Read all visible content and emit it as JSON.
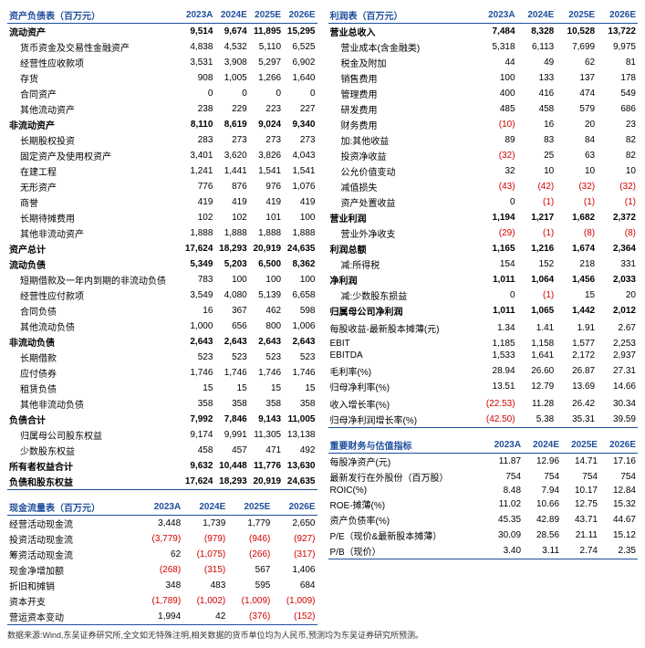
{
  "years": [
    "2023A",
    "2024E",
    "2025E",
    "2026E"
  ],
  "left_top": {
    "title": "资产负债表（百万元）",
    "sections": [
      {
        "label": "流动资产",
        "bold": true,
        "vals": [
          "9,514",
          "9,674",
          "11,895",
          "15,295"
        ]
      },
      {
        "label": "货币资金及交易性金融资产",
        "indent": true,
        "vals": [
          "4,838",
          "4,532",
          "5,110",
          "6,525"
        ]
      },
      {
        "label": "经营性应收款项",
        "indent": true,
        "vals": [
          "3,531",
          "3,908",
          "5,297",
          "6,902"
        ]
      },
      {
        "label": "存货",
        "indent": true,
        "vals": [
          "908",
          "1,005",
          "1,266",
          "1,640"
        ]
      },
      {
        "label": "合同资产",
        "indent": true,
        "vals": [
          "0",
          "0",
          "0",
          "0"
        ]
      },
      {
        "label": "其他流动资产",
        "indent": true,
        "vals": [
          "238",
          "229",
          "223",
          "227"
        ]
      },
      {
        "label": "非流动资产",
        "bold": true,
        "vals": [
          "8,110",
          "8,619",
          "9,024",
          "9,340"
        ]
      },
      {
        "label": "长期股权投资",
        "indent": true,
        "vals": [
          "283",
          "273",
          "273",
          "273"
        ]
      },
      {
        "label": "固定资产及使用权资产",
        "indent": true,
        "vals": [
          "3,401",
          "3,620",
          "3,826",
          "4,043"
        ]
      },
      {
        "label": "在建工程",
        "indent": true,
        "vals": [
          "1,241",
          "1,441",
          "1,541",
          "1,541"
        ]
      },
      {
        "label": "无形资产",
        "indent": true,
        "vals": [
          "776",
          "876",
          "976",
          "1,076"
        ]
      },
      {
        "label": "商誉",
        "indent": true,
        "vals": [
          "419",
          "419",
          "419",
          "419"
        ]
      },
      {
        "label": "长期待摊费用",
        "indent": true,
        "vals": [
          "102",
          "102",
          "101",
          "100"
        ]
      },
      {
        "label": "其他非流动资产",
        "indent": true,
        "vals": [
          "1,888",
          "1,888",
          "1,888",
          "1,888"
        ]
      },
      {
        "label": "资产总计",
        "bold": true,
        "vals": [
          "17,624",
          "18,293",
          "20,919",
          "24,635"
        ]
      },
      {
        "label": "流动负债",
        "bold": true,
        "vals": [
          "5,349",
          "5,203",
          "6,500",
          "8,362"
        ]
      },
      {
        "label": "短期借款及一年内到期的非流动负债",
        "indent": true,
        "vals": [
          "783",
          "100",
          "100",
          "100"
        ]
      },
      {
        "label": "经营性应付款项",
        "indent": true,
        "vals": [
          "3,549",
          "4,080",
          "5,139",
          "6,658"
        ]
      },
      {
        "label": "合同负债",
        "indent": true,
        "vals": [
          "16",
          "367",
          "462",
          "598"
        ]
      },
      {
        "label": "其他流动负债",
        "indent": true,
        "vals": [
          "1,000",
          "656",
          "800",
          "1,006"
        ]
      },
      {
        "label": "非流动负债",
        "bold": true,
        "vals": [
          "2,643",
          "2,643",
          "2,643",
          "2,643"
        ]
      },
      {
        "label": "长期借款",
        "indent": true,
        "vals": [
          "523",
          "523",
          "523",
          "523"
        ]
      },
      {
        "label": "应付债券",
        "indent": true,
        "vals": [
          "1,746",
          "1,746",
          "1,746",
          "1,746"
        ]
      },
      {
        "label": "租赁负债",
        "indent": true,
        "vals": [
          "15",
          "15",
          "15",
          "15"
        ]
      },
      {
        "label": "其他非流动负债",
        "indent": true,
        "vals": [
          "358",
          "358",
          "358",
          "358"
        ]
      },
      {
        "label": "负债合计",
        "bold": true,
        "vals": [
          "7,992",
          "7,846",
          "9,143",
          "11,005"
        ]
      },
      {
        "label": "归属母公司股东权益",
        "indent": true,
        "vals": [
          "9,174",
          "9,991",
          "11,305",
          "13,138"
        ]
      },
      {
        "label": "少数股东权益",
        "indent": true,
        "vals": [
          "458",
          "457",
          "471",
          "492"
        ]
      },
      {
        "label": "所有者权益合计",
        "bold": true,
        "vals": [
          "9,632",
          "10,448",
          "11,776",
          "13,630"
        ]
      },
      {
        "label": "负债和股东权益",
        "bold": true,
        "border": true,
        "vals": [
          "17,624",
          "18,293",
          "20,919",
          "24,635"
        ]
      }
    ]
  },
  "left_bottom": {
    "title": "现金流量表（百万元）",
    "rows": [
      {
        "label": "经营活动现金流",
        "vals": [
          "3,448",
          "1,739",
          "1,779",
          "2,650"
        ]
      },
      {
        "label": "投资活动现金流",
        "vals": [
          "(3,779)",
          "(979)",
          "(946)",
          "(927)"
        ],
        "neg": [
          true,
          true,
          true,
          true
        ]
      },
      {
        "label": "筹资活动现金流",
        "vals": [
          "62",
          "(1,075)",
          "(266)",
          "(317)"
        ],
        "neg": [
          false,
          true,
          true,
          true
        ]
      },
      {
        "label": "现金净增加额",
        "vals": [
          "(268)",
          "(315)",
          "567",
          "1,406"
        ],
        "neg": [
          true,
          true,
          false,
          false
        ]
      },
      {
        "label": "折旧和摊销",
        "vals": [
          "348",
          "483",
          "595",
          "684"
        ]
      },
      {
        "label": "资本开支",
        "vals": [
          "(1,789)",
          "(1,002)",
          "(1,009)",
          "(1,009)"
        ],
        "neg": [
          true,
          true,
          true,
          true
        ]
      },
      {
        "label": "营运资本变动",
        "border": true,
        "vals": [
          "1,994",
          "42",
          "(376)",
          "(152)"
        ],
        "neg": [
          false,
          false,
          true,
          true
        ]
      }
    ]
  },
  "right_top": {
    "title": "利润表（百万元）",
    "rows": [
      {
        "label": "营业总收入",
        "bold": true,
        "vals": [
          "7,484",
          "8,328",
          "10,528",
          "13,722"
        ]
      },
      {
        "label": "营业成本(含金融类)",
        "indent": true,
        "vals": [
          "5,318",
          "6,113",
          "7,699",
          "9,975"
        ]
      },
      {
        "label": "税金及附加",
        "indent": true,
        "vals": [
          "44",
          "49",
          "62",
          "81"
        ]
      },
      {
        "label": "销售费用",
        "indent": true,
        "vals": [
          "100",
          "133",
          "137",
          "178"
        ]
      },
      {
        "label": "管理费用",
        "indent": true,
        "vals": [
          "400",
          "416",
          "474",
          "549"
        ]
      },
      {
        "label": "研发费用",
        "indent": true,
        "vals": [
          "485",
          "458",
          "579",
          "686"
        ]
      },
      {
        "label": "财务费用",
        "indent": true,
        "vals": [
          "(10)",
          "16",
          "20",
          "23"
        ],
        "neg": [
          true,
          false,
          false,
          false
        ]
      },
      {
        "label": "加:其他收益",
        "indent": true,
        "vals": [
          "89",
          "83",
          "84",
          "82"
        ]
      },
      {
        "label": "投资净收益",
        "indent": true,
        "vals": [
          "(32)",
          "25",
          "63",
          "82"
        ],
        "neg": [
          true,
          false,
          false,
          false
        ]
      },
      {
        "label": "公允价值变动",
        "indent": true,
        "vals": [
          "32",
          "10",
          "10",
          "10"
        ]
      },
      {
        "label": "减值损失",
        "indent": true,
        "vals": [
          "(43)",
          "(42)",
          "(32)",
          "(32)"
        ],
        "neg": [
          true,
          true,
          true,
          true
        ]
      },
      {
        "label": "资产处置收益",
        "indent": true,
        "vals": [
          "0",
          "(1)",
          "(1)",
          "(1)"
        ],
        "neg": [
          false,
          true,
          true,
          true
        ]
      },
      {
        "label": "营业利润",
        "bold": true,
        "vals": [
          "1,194",
          "1,217",
          "1,682",
          "2,372"
        ]
      },
      {
        "label": "营业外净收支",
        "indent": true,
        "vals": [
          "(29)",
          "(1)",
          "(8)",
          "(8)"
        ],
        "neg": [
          true,
          true,
          true,
          true
        ]
      },
      {
        "label": "利润总额",
        "bold": true,
        "vals": [
          "1,165",
          "1,216",
          "1,674",
          "2,364"
        ]
      },
      {
        "label": "减:所得税",
        "indent": true,
        "vals": [
          "154",
          "152",
          "218",
          "331"
        ]
      },
      {
        "label": "净利润",
        "bold": true,
        "vals": [
          "1,011",
          "1,064",
          "1,456",
          "2,033"
        ]
      },
      {
        "label": "减:少数股东损益",
        "indent": true,
        "vals": [
          "0",
          "(1)",
          "15",
          "20"
        ],
        "neg": [
          false,
          true,
          false,
          false
        ]
      },
      {
        "label": "归属母公司净利润",
        "bold": true,
        "vals": [
          "1,011",
          "1,065",
          "1,442",
          "2,012"
        ]
      },
      {
        "label": "",
        "vals": [
          "",
          "",
          "",
          ""
        ]
      },
      {
        "label": "每股收益-最新股本摊薄(元)",
        "vals": [
          "1.34",
          "1.41",
          "1.91",
          "2.67"
        ]
      },
      {
        "label": "",
        "vals": [
          "",
          "",
          "",
          ""
        ]
      },
      {
        "label": "EBIT",
        "vals": [
          "1,185",
          "1,158",
          "1,577",
          "2,253"
        ]
      },
      {
        "label": "EBITDA",
        "vals": [
          "1,533",
          "1,641",
          "2,172",
          "2,937"
        ]
      },
      {
        "label": "",
        "vals": [
          "",
          "",
          "",
          ""
        ]
      },
      {
        "label": "毛利率(%)",
        "vals": [
          "28.94",
          "26.60",
          "26.87",
          "27.31"
        ]
      },
      {
        "label": "归母净利率(%)",
        "vals": [
          "13.51",
          "12.79",
          "13.69",
          "14.66"
        ]
      },
      {
        "label": "",
        "vals": [
          "",
          "",
          "",
          ""
        ]
      },
      {
        "label": "收入增长率(%)",
        "vals": [
          "(22.53)",
          "11.28",
          "26.42",
          "30.34"
        ],
        "neg": [
          true,
          false,
          false,
          false
        ]
      },
      {
        "label": "归母净利润增长率(%)",
        "border": true,
        "vals": [
          "(42.50)",
          "5.38",
          "35.31",
          "39.59"
        ],
        "neg": [
          true,
          false,
          false,
          false
        ]
      }
    ]
  },
  "right_bottom": {
    "title": "重要财务与估值指标",
    "rows": [
      {
        "label": "每股净资产(元)",
        "vals": [
          "11.87",
          "12.96",
          "14.71",
          "17.16"
        ]
      },
      {
        "label": "最新发行在外股份（百万股）",
        "vals": [
          "754",
          "754",
          "754",
          "754"
        ]
      },
      {
        "label": "ROIC(%)",
        "vals": [
          "8.48",
          "7.94",
          "10.17",
          "12.84"
        ]
      },
      {
        "label": "ROE-摊薄(%)",
        "vals": [
          "11.02",
          "10.66",
          "12.75",
          "15.32"
        ]
      },
      {
        "label": "资产负债率(%)",
        "vals": [
          "45.35",
          "42.89",
          "43.71",
          "44.67"
        ]
      },
      {
        "label": "P/E（现价&最新股本摊薄）",
        "vals": [
          "30.09",
          "28.56",
          "21.11",
          "15.12"
        ]
      },
      {
        "label": "P/B（现价）",
        "border": true,
        "vals": [
          "3.40",
          "3.11",
          "2.74",
          "2.35"
        ]
      }
    ]
  },
  "footnote": "数据来源:Wind,东吴证券研究所,全文如无特殊注明,相关数据的货币单位均为人民币,预测均为东吴证券研究所预测。"
}
